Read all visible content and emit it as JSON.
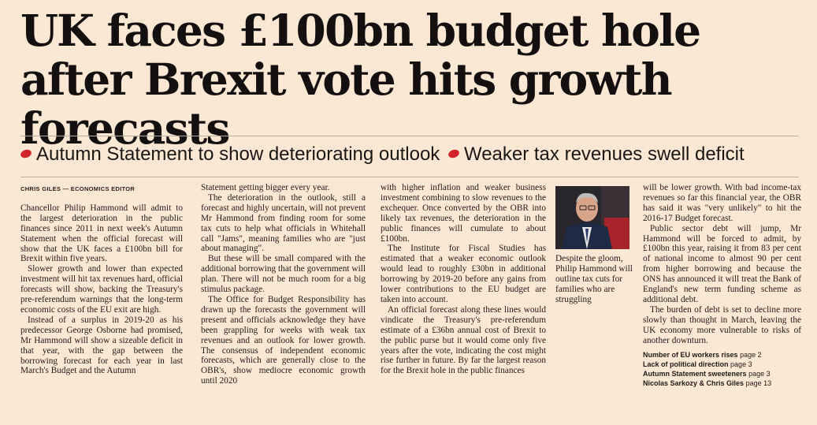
{
  "headline": "UK faces £100bn budget hole after Brexit vote hits growth forecasts",
  "standfirst": [
    "Autumn Statement to show deteriorating outlook",
    "Weaker tax revenues swell deficit"
  ],
  "byline": "CHRIS GILES — ECONOMICS EDITOR",
  "col1": [
    "Chancellor Philip Hammond will admit to the largest deterioration in the public finances since 2011 in next week's Autumn Statement when the official forecast will show that the UK faces a £100bn bill for Brexit within five years.",
    "Slower growth and lower than expected investment will hit tax revenues hard, official forecasts will show, backing the Treasury's pre-referendum warnings that the long-term economic costs of the EU exit are high.",
    "Instead of a surplus in 2019-20 as his predecessor George Osborne had promised, Mr Hammond will show a sizeable deficit in that year, with the gap between the borrowing forecast for each year in last March's Budget and the Autumn"
  ],
  "col2": [
    "Statement getting bigger every year.",
    "The deterioration in the outlook, still a forecast and highly uncertain, will not prevent Mr Hammond from finding room for some tax cuts to help what officials in Whitehall call \"Jams\", meaning families who are \"just about managing\".",
    "But these will be small compared with the additional borrowing that the government will plan. There will not be much room for a big stimulus package.",
    "The Office for Budget Responsibility has drawn up the forecasts the government will present and officials acknowledge they have been grappling for weeks with weak tax revenues and an outlook for lower growth. The consensus of independent economic forecasts, which are generally close to the OBR's, show mediocre economic growth until 2020"
  ],
  "col3": [
    "with higher inflation and weaker business investment combining to slow revenues to the exchequer. Once converted by the OBR into likely tax revenues, the deterioration in the public finances will cumulate to about £100bn.",
    "The Institute for Fiscal Studies has estimated that a weaker economic outlook would lead to roughly £30bn in additional borrowing by 2019-20 before any gains from lower contributions to the EU budget are taken into account.",
    "An official forecast along these lines would vindicate the Treasury's pre-referendum estimate of a £36bn annual cost of Brexit to the public purse but it would come only five years after the vote, indicating the cost might rise further in future. By far the largest reason for the Brexit hole in the public finances"
  ],
  "caption": "Despite the gloom, Philip Hammond will outline tax cuts for families who are struggling",
  "col5": [
    "will be lower growth. With bad income-tax revenues so far this financial year, the OBR has said it was \"very unlikely\" to hit the 2016-17 Budget forecast.",
    "Public sector debt will jump, Mr Hammond will be forced to admit, by £100bn this year, raising it from 83 per cent of national income to almost 90 per cent from higher borrowing and because the ONS has announced it will treat the Bank of England's new term funding scheme as additional debt.",
    "The burden of debt is set to decline more slowly than thought in March, leaving the UK economy more vulnerable to risks of another downturn."
  ],
  "refs": [
    {
      "label": "Number of EU workers rises",
      "page": "page 2"
    },
    {
      "label": "Lack of political direction",
      "page": "page 3"
    },
    {
      "label": "Autumn Statement sweeteners",
      "page": "page 3"
    },
    {
      "label": "Nicolas Sarkozy & Chris Giles",
      "page": "page 13"
    }
  ],
  "colors": {
    "background": "#fbe8d4",
    "bullet": "#d2232a",
    "text": "#1a1614"
  }
}
